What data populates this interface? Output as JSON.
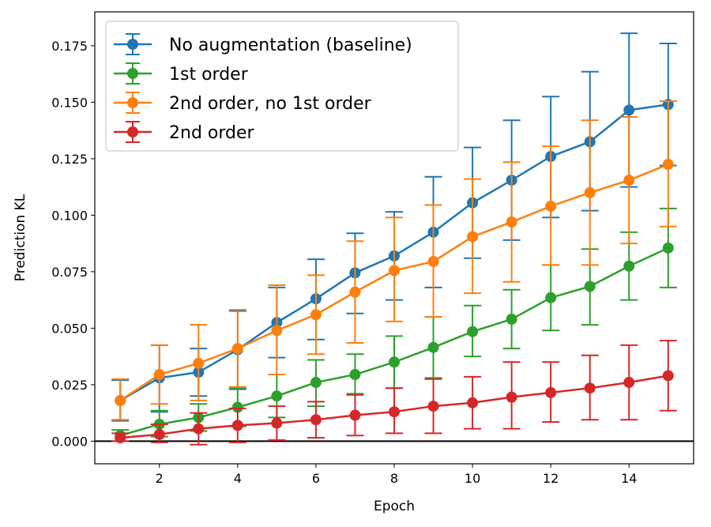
{
  "chart_data": {
    "type": "line",
    "xlabel": "Epoch",
    "ylabel": "Prediction KL",
    "xlim": [
      0.35,
      15.65
    ],
    "ylim": [
      -0.01,
      0.19
    ],
    "xticks": [
      2,
      4,
      6,
      8,
      10,
      12,
      14
    ],
    "yticks": [
      0.0,
      0.025,
      0.05,
      0.075,
      0.1,
      0.125,
      0.15,
      0.175
    ],
    "ytick_labels": [
      "0.000",
      "0.025",
      "0.050",
      "0.075",
      "0.100",
      "0.125",
      "0.150",
      "0.175"
    ],
    "reference_line": {
      "y": 0.0,
      "color": "#000000"
    },
    "grid": false,
    "legend_position": "top-left",
    "x": [
      1,
      2,
      3,
      4,
      5,
      6,
      7,
      8,
      9,
      10,
      11,
      12,
      13,
      14,
      15
    ],
    "series": [
      {
        "name": "No augmentation (baseline)",
        "color": "#1f77b4",
        "values": [
          0.018,
          0.028,
          0.0305,
          0.0405,
          0.0525,
          0.063,
          0.0745,
          0.082,
          0.0925,
          0.1055,
          0.1155,
          0.126,
          0.1325,
          0.1465,
          0.149
        ],
        "error_low": [
          0.009,
          0.013,
          0.02,
          0.023,
          0.037,
          0.045,
          0.0565,
          0.0625,
          0.068,
          0.081,
          0.089,
          0.099,
          0.102,
          0.1125,
          0.122
        ],
        "error_high": [
          0.027,
          0.0425,
          0.041,
          0.058,
          0.068,
          0.0805,
          0.092,
          0.1015,
          0.117,
          0.13,
          0.142,
          0.1525,
          0.1635,
          0.1805,
          0.176
        ]
      },
      {
        "name": "1st order",
        "color": "#2ca02c",
        "values": [
          0.0025,
          0.0075,
          0.0105,
          0.015,
          0.02,
          0.026,
          0.0295,
          0.035,
          0.0415,
          0.0485,
          0.054,
          0.0635,
          0.0685,
          0.0775,
          0.0855
        ],
        "error_low": [
          0.0,
          0.002,
          0.0045,
          0.0065,
          0.0105,
          0.0155,
          0.021,
          0.0235,
          0.028,
          0.0375,
          0.041,
          0.049,
          0.0515,
          0.0625,
          0.068
        ],
        "error_high": [
          0.005,
          0.0135,
          0.0165,
          0.0235,
          0.0295,
          0.036,
          0.0385,
          0.0465,
          0.055,
          0.06,
          0.067,
          0.078,
          0.085,
          0.0925,
          0.103
        ]
      },
      {
        "name": "2nd order, no 1st order",
        "color": "#ff7f0e",
        "values": [
          0.018,
          0.0295,
          0.0345,
          0.041,
          0.049,
          0.056,
          0.066,
          0.0755,
          0.0795,
          0.0905,
          0.097,
          0.104,
          0.11,
          0.1155,
          0.1225
        ],
        "error_low": [
          0.0095,
          0.0165,
          0.018,
          0.024,
          0.0295,
          0.0385,
          0.0435,
          0.053,
          0.055,
          0.0655,
          0.0705,
          0.078,
          0.078,
          0.0875,
          0.095
        ],
        "error_high": [
          0.0275,
          0.0425,
          0.0515,
          0.0575,
          0.069,
          0.0735,
          0.0885,
          0.099,
          0.1045,
          0.116,
          0.1235,
          0.1305,
          0.142,
          0.1435,
          0.1505
        ]
      },
      {
        "name": "2nd order",
        "color": "#d62728",
        "values": [
          0.0015,
          0.003,
          0.0055,
          0.007,
          0.008,
          0.0095,
          0.0115,
          0.013,
          0.0155,
          0.017,
          0.0195,
          0.0215,
          0.0235,
          0.026,
          0.029
        ],
        "error_low": [
          0.0,
          -0.0005,
          -0.0015,
          -0.0005,
          0.0005,
          0.0015,
          0.0025,
          0.0035,
          0.0035,
          0.0055,
          0.0055,
          0.0085,
          0.0095,
          0.0095,
          0.0135
        ],
        "error_high": [
          0.0035,
          0.0075,
          0.0125,
          0.0145,
          0.0155,
          0.0175,
          0.0205,
          0.0235,
          0.0275,
          0.0285,
          0.035,
          0.035,
          0.038,
          0.0425,
          0.0445
        ]
      }
    ]
  }
}
